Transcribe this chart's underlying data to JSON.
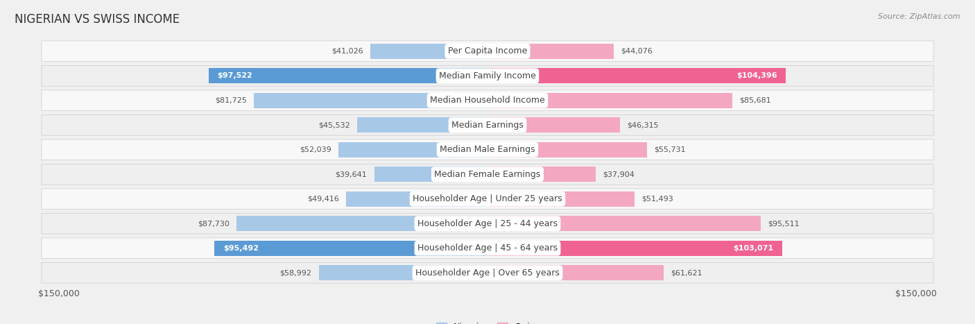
{
  "title": "NIGERIAN VS SWISS INCOME",
  "source": "Source: ZipAtlas.com",
  "categories": [
    "Per Capita Income",
    "Median Family Income",
    "Median Household Income",
    "Median Earnings",
    "Median Male Earnings",
    "Median Female Earnings",
    "Householder Age | Under 25 years",
    "Householder Age | 25 - 44 years",
    "Householder Age | 45 - 64 years",
    "Householder Age | Over 65 years"
  ],
  "nigerian": [
    41026,
    97522,
    81725,
    45532,
    52039,
    39641,
    49416,
    87730,
    95492,
    58992
  ],
  "swiss": [
    44076,
    104396,
    85681,
    46315,
    55731,
    37904,
    51493,
    95511,
    103071,
    61621
  ],
  "nigerian_labels": [
    "$41,026",
    "$97,522",
    "$81,725",
    "$45,532",
    "$52,039",
    "$39,641",
    "$49,416",
    "$87,730",
    "$95,492",
    "$58,992"
  ],
  "swiss_labels": [
    "$44,076",
    "$104,396",
    "$85,681",
    "$46,315",
    "$55,731",
    "$37,904",
    "$51,493",
    "$95,511",
    "$103,071",
    "$61,621"
  ],
  "nigerian_color_normal": "#a8c8e8",
  "nigerian_color_bold": "#5b9bd5",
  "swiss_color_normal": "#f4a7c0",
  "swiss_color_bold": "#f06292",
  "nigerian_bold_indices": [
    1,
    8
  ],
  "swiss_bold_indices": [
    1,
    8
  ],
  "max_val": 150000,
  "row_colors": [
    "#f8f8f8",
    "#efefef",
    "#f8f8f8",
    "#efefef",
    "#f8f8f8",
    "#efefef",
    "#f8f8f8",
    "#efefef",
    "#f8f8f8",
    "#efefef"
  ],
  "fig_bg": "#f0f0f0",
  "title_fontsize": 12,
  "source_fontsize": 8,
  "bar_label_fontsize": 8,
  "category_fontsize": 9,
  "legend_label_nigerian": "Nigerian",
  "legend_label_swiss": "Swiss"
}
